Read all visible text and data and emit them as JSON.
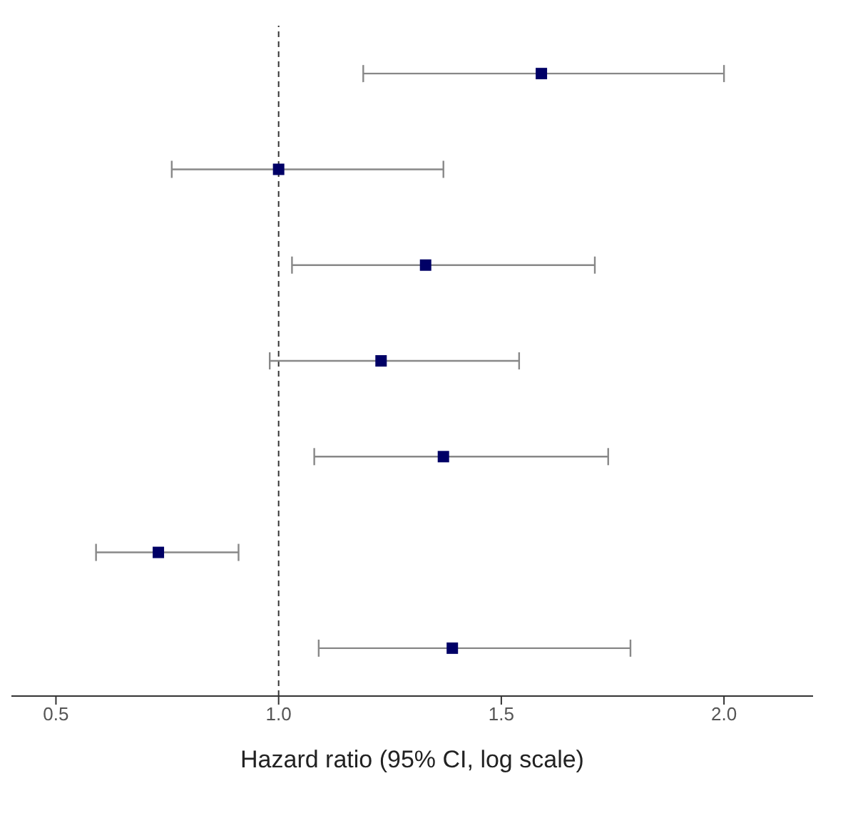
{
  "chart_data": {
    "type": "scatter",
    "orientation": "horizontal",
    "xlabel": "Hazard ratio (95% CI, log scale)",
    "categories": [
      null,
      null,
      null,
      null,
      null,
      null,
      null
    ],
    "values": [
      1.59,
      1.0,
      1.33,
      1.23,
      1.37,
      0.73,
      1.39
    ],
    "errors": [
      [
        1.19,
        2.0
      ],
      [
        0.76,
        1.37
      ],
      [
        1.03,
        1.71
      ],
      [
        0.98,
        1.54
      ],
      [
        1.08,
        1.74
      ],
      [
        0.59,
        0.91
      ],
      [
        1.09,
        1.79
      ]
    ],
    "color": "#000066",
    "marker": "square",
    "xlim": [
      0.4,
      2.2
    ],
    "xticks": [
      {
        "value": 0.5,
        "label": "0.5"
      },
      {
        "value": 1.0,
        "label": "1.0"
      },
      {
        "value": 1.5,
        "label": "1.5"
      },
      {
        "value": 2.0,
        "label": "2.0"
      }
    ],
    "tick_labels": "x",
    "grid": false,
    "ref_lines": [
      {
        "axis": "x",
        "value": 1.0,
        "color": "#333333",
        "line_style": "dashed"
      }
    ]
  }
}
